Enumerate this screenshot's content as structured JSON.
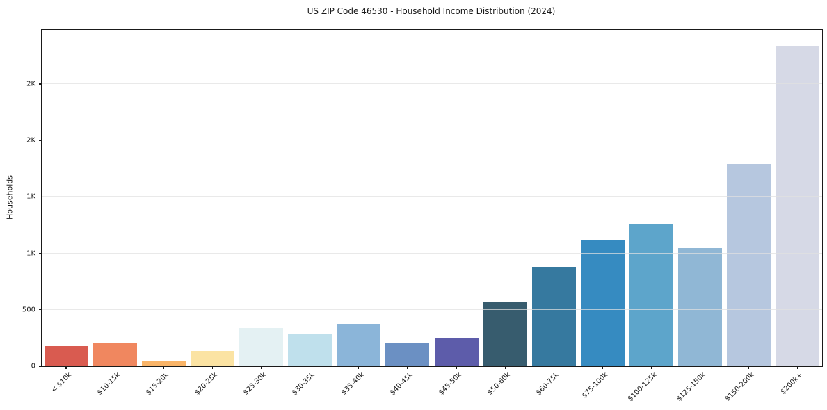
{
  "chart_data": {
    "type": "bar",
    "title": "US ZIP Code 46530 - Household Income Distribution (2024)",
    "xlabel": "",
    "ylabel": "Households",
    "categories": [
      "< $10k",
      "$10-15k",
      "$15-20k",
      "$20-25k",
      "$25-30k",
      "$30-35k",
      "$35-40k",
      "$40-45k",
      "$45-50k",
      "$50-60k",
      "$60-75k",
      "$75-100k",
      "$100-125k",
      "$125-150k",
      "$150-200k",
      "$200k+"
    ],
    "values": [
      180,
      205,
      50,
      135,
      340,
      290,
      375,
      210,
      255,
      575,
      880,
      1120,
      1260,
      1045,
      1790,
      2840
    ],
    "bar_colors": [
      "#d95b50",
      "#f0875f",
      "#f9b468",
      "#fbe3a3",
      "#e4f1f3",
      "#bfe0ec",
      "#8bb5d9",
      "#6b90c3",
      "#5d5caa",
      "#375c6e",
      "#36799f",
      "#368bc1",
      "#5da5cb",
      "#90b7d5",
      "#b6c7df",
      "#d6d9e6"
    ],
    "ylim": [
      0,
      2980
    ],
    "yticks": {
      "values": [
        0,
        500,
        1000,
        1500,
        2000,
        2500
      ],
      "labels": [
        "0",
        "500",
        "1K",
        "1K",
        "2K",
        "2K"
      ]
    },
    "grid": "horizontal",
    "legend": "none",
    "axis_color": "#1a1a1a",
    "gridline_color": "#e9e9e9",
    "background_color": "#ffffff",
    "bar_width_fraction": 0.9
  }
}
